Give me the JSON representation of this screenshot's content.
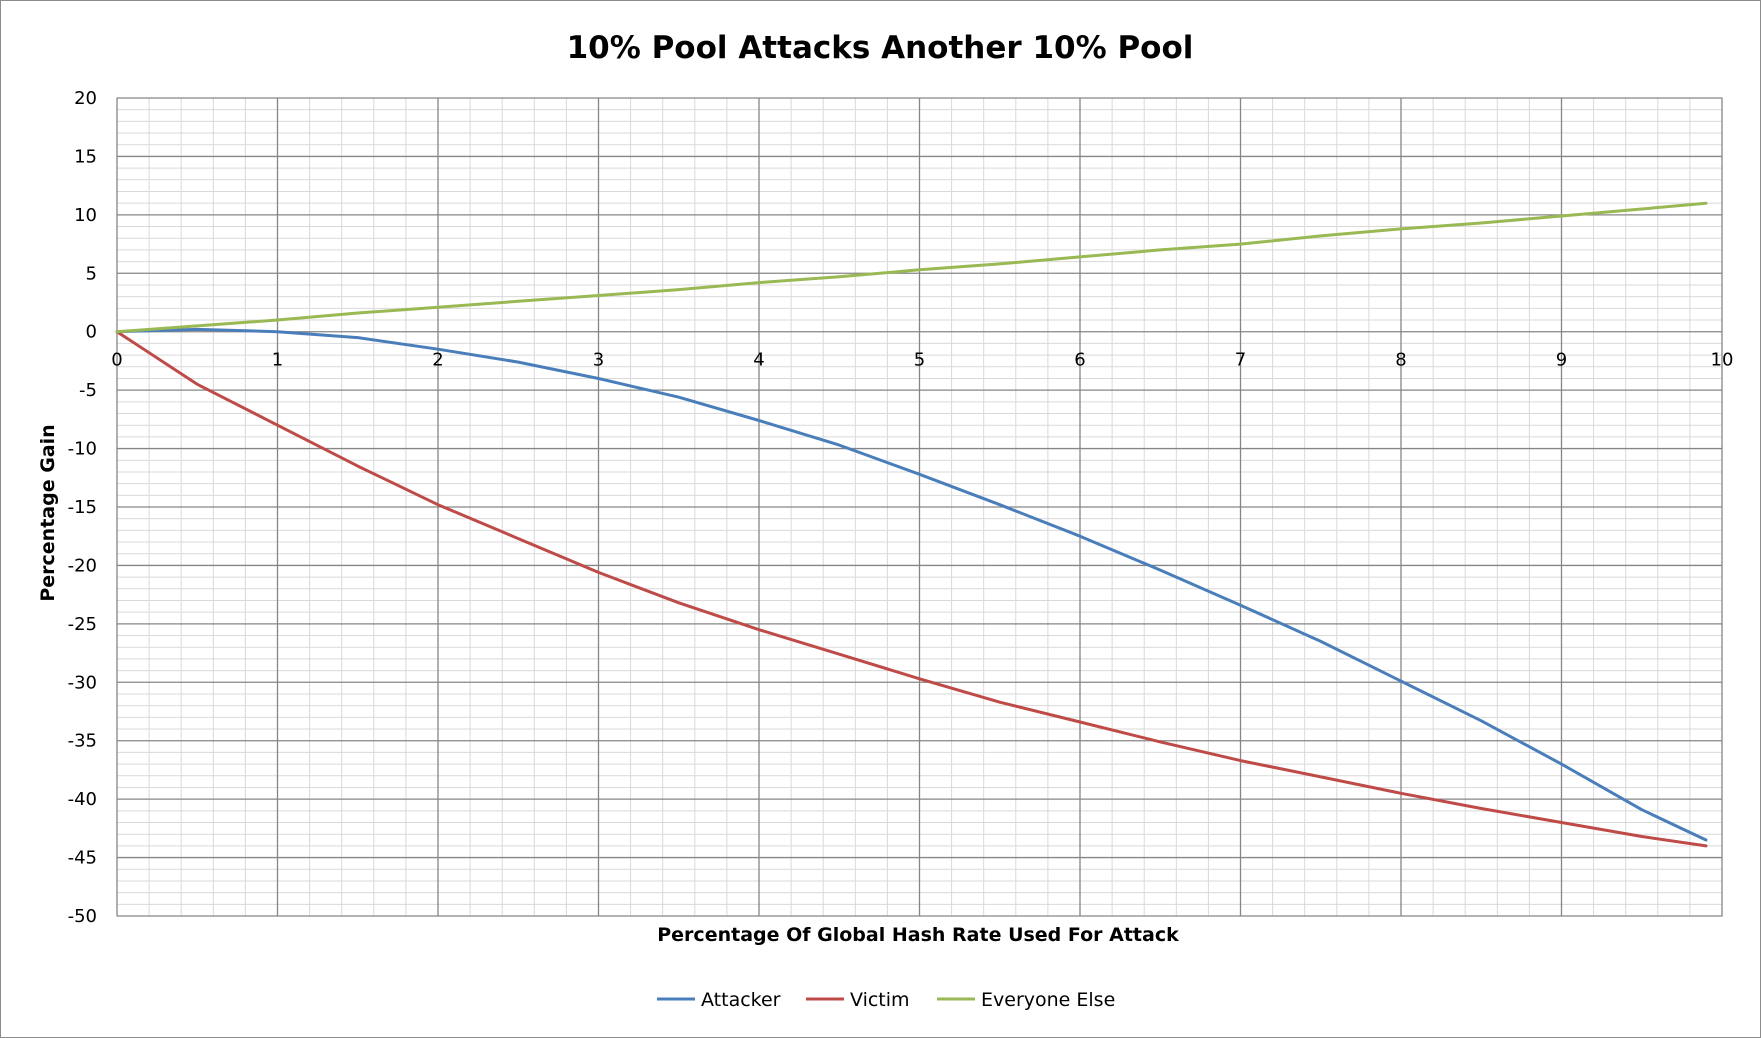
{
  "chart_data": {
    "type": "line",
    "title": "10% Pool Attacks Another 10% Pool",
    "xlabel": "Percentage Of Global Hash Rate Used For Attack",
    "ylabel": "Percentage Gain",
    "xlim": [
      0,
      10
    ],
    "ylim": [
      -50,
      20
    ],
    "x_ticks": [
      "0",
      "1",
      "2",
      "3",
      "4",
      "5",
      "6",
      "7",
      "8",
      "9",
      "10"
    ],
    "y_ticks": [
      "20",
      "15",
      "10",
      "5",
      "0",
      "-5",
      "-10",
      "-15",
      "-20",
      "-25",
      "-30",
      "-35",
      "-40",
      "-45",
      "-50"
    ],
    "x_major_step": 1,
    "x_minor_step": 0.2,
    "y_major_step": 5,
    "y_minor_step": 1,
    "grid": true,
    "legend_position": "bottom",
    "series": [
      {
        "name": "Attacker",
        "color": "#4a7ebb",
        "x": [
          0,
          0.5,
          1,
          1.5,
          2,
          2.5,
          3,
          3.5,
          4,
          4.5,
          5,
          5.5,
          6,
          6.5,
          7,
          7.5,
          8,
          8.5,
          9,
          9.5,
          9.9
        ],
        "y": [
          0,
          0.2,
          0,
          -0.5,
          -1.5,
          -2.6,
          -4.0,
          -5.6,
          -7.6,
          -9.7,
          -12.2,
          -14.8,
          -17.5,
          -20.4,
          -23.4,
          -26.5,
          -29.9,
          -33.3,
          -37.0,
          -40.9,
          -43.5
        ]
      },
      {
        "name": "Victim",
        "color": "#be4b48",
        "x": [
          0,
          0.5,
          1,
          1.5,
          2,
          2.5,
          3,
          3.5,
          4,
          4.5,
          5,
          5.5,
          6,
          6.5,
          7,
          7.5,
          8,
          8.5,
          9,
          9.5,
          9.9
        ],
        "y": [
          0,
          -4.5,
          -8.0,
          -11.5,
          -14.8,
          -17.7,
          -20.6,
          -23.2,
          -25.5,
          -27.6,
          -29.7,
          -31.7,
          -33.4,
          -35.1,
          -36.7,
          -38.1,
          -39.5,
          -40.8,
          -42.0,
          -43.2,
          -44.0
        ]
      },
      {
        "name": "Everyone Else",
        "color": "#98b954",
        "x": [
          0,
          0.5,
          1,
          1.5,
          2,
          2.5,
          3,
          3.5,
          4,
          4.5,
          5,
          5.5,
          6,
          6.5,
          7,
          7.5,
          8,
          8.5,
          9,
          9.5,
          9.9
        ],
        "y": [
          0,
          0.5,
          1.0,
          1.6,
          2.1,
          2.6,
          3.1,
          3.6,
          4.2,
          4.7,
          5.3,
          5.8,
          6.4,
          7.0,
          7.5,
          8.2,
          8.8,
          9.3,
          9.9,
          10.5,
          11.0
        ]
      }
    ]
  }
}
